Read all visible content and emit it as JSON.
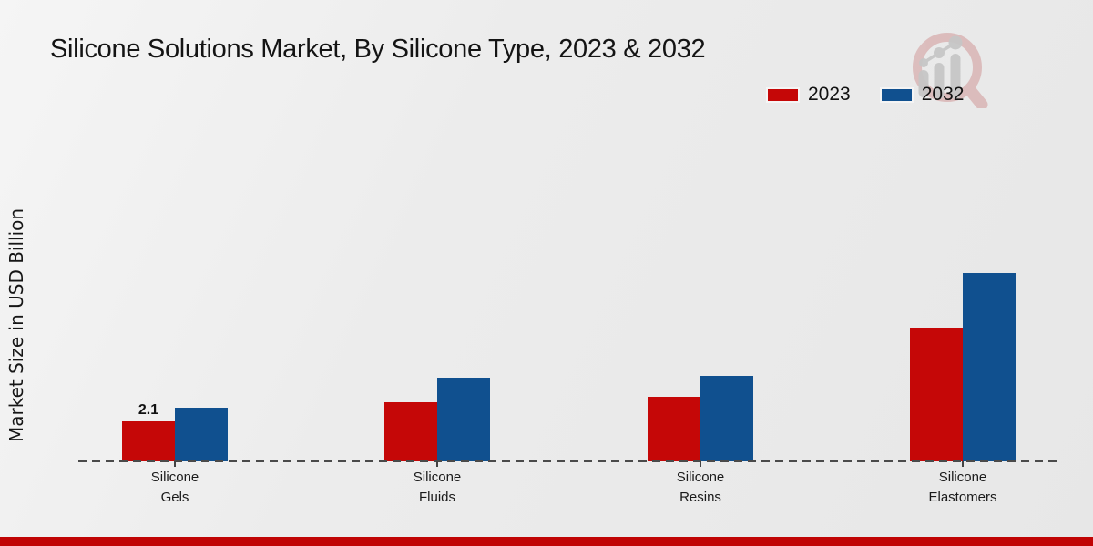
{
  "chart_data": {
    "type": "bar",
    "title": "Silicone Solutions Market, By Silicone Type, 2023 & 2032",
    "ylabel": "Market Size in USD Billion",
    "xlabel": "",
    "categories": [
      "Silicone\nGels",
      "Silicone\nFluids",
      "Silicone\nResins",
      "Silicone\nElastomers"
    ],
    "series": [
      {
        "name": "2023",
        "color": "#c50707",
        "values": [
          2.1,
          3.1,
          3.4,
          7.0
        ]
      },
      {
        "name": "2032",
        "color": "#10508f",
        "values": [
          2.8,
          4.4,
          4.5,
          9.9
        ]
      }
    ],
    "annotations": [
      {
        "text": "2.1",
        "category_index": 0,
        "series_index": 0
      }
    ],
    "legend_position": "top-right",
    "grid": false,
    "baseline_style": "dashed",
    "ylim": [
      0,
      12
    ]
  },
  "branding": {
    "logo_name": "magnifier-bar-chart-watermark",
    "accent_bar_color": "#c00404"
  }
}
